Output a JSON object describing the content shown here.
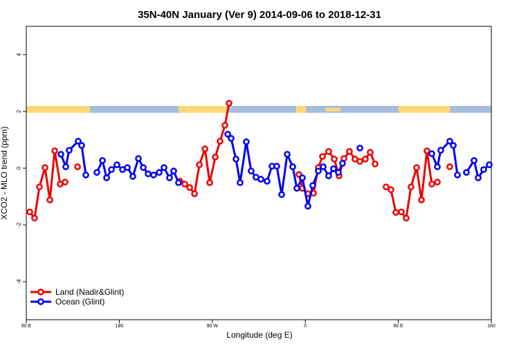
{
  "chart_data": {
    "type": "line",
    "title": "35N-40N January (Ver 9)   2014-09-06 to 2018-12-31",
    "xlabel": "Longitude (deg E)",
    "ylabel": "XCO2 - MLO trend (ppm)",
    "xlim": [
      90,
      540
    ],
    "ylim": [
      -5.34,
      5
    ],
    "xticks": [
      {
        "value": 90,
        "label": "90 E"
      },
      180,
      {
        "value": 270,
        "label": "90 W"
      },
      {
        "value": 360,
        "label": "0"
      },
      {
        "value": 450,
        "label": "90 E"
      },
      {
        "value": 540,
        "label": "180"
      }
    ],
    "yticks": [
      -4,
      -2,
      0,
      2,
      4
    ],
    "legend": "bottom-left",
    "series": [
      {
        "name": "Land (Nadir&Glint)",
        "color": "#ee0000",
        "x": [
          93.3,
          98.0,
          102.7,
          108.1,
          112.8,
          117.5,
          122.8,
          127.5,
          null,
          139.6,
          null,
          238.7,
          243.4,
          248.1,
          252.8,
          257.5,
          262.9,
          267.5,
          272.9,
          277.5,
          282.2,
          286.2,
          null,
          353.8,
          357.2,
          362.5,
          367.9,
          372.6,
          376.6,
          382.6,
          388.0,
          392.7,
          397.4,
          402.7,
          408.1,
          412.8,
          418.1,
          422.8,
          427.5,
          null,
          438.2,
          442.9,
          447.6,
          452.9,
          457.6,
          462.3,
          467.7,
          472.4,
          477.7,
          482.4,
          487.8,
          null,
          499.8
        ],
        "values": [
          -1.54,
          -1.76,
          -0.66,
          0.02,
          -1.12,
          0.61,
          -0.56,
          -0.49,
          null,
          0.05,
          null,
          -0.46,
          -0.56,
          -0.68,
          -0.9,
          0.12,
          0.68,
          -0.51,
          0.39,
          0.95,
          1.51,
          2.29,
          null,
          -0.22,
          -0.71,
          -0.9,
          -0.88,
          0.02,
          0.41,
          0.59,
          0.32,
          -0.27,
          0.34,
          0.59,
          0.32,
          0.24,
          0.32,
          0.56,
          0.15,
          null,
          -0.66,
          -0.76,
          -1.56,
          -1.54,
          -1.76,
          -0.66,
          0.02,
          -1.12,
          0.61,
          -0.56,
          -0.49,
          null,
          0.05
        ]
      },
      {
        "name": "Ocean (Glint)",
        "color": "#0000ee",
        "x": [
          123.5,
          128.2,
          131.5,
          140.2,
          143.6,
          147.6,
          null,
          158.3,
          163.7,
          167.7,
          172.4,
          177.7,
          183.1,
          187.8,
          193.1,
          198.5,
          203.2,
          207.9,
          213.2,
          218.6,
          223.3,
          228.6,
          232.6,
          237.3,
          null,
          284.9,
          288.2,
          292.9,
          296.9,
          302.9,
          307.6,
          312.3,
          317.0,
          323.0,
          327.7,
          332.4,
          337.1,
          342.5,
          347.8,
          351.8,
          357.2,
          362.5,
          367.2,
          372.6,
          377.3,
          382.6,
          387.3,
          392.0,
          396.0,
          null,
          412.8,
          null,
          482.4,
          487.8,
          491.1,
          499.8,
          503.2,
          507.2,
          null,
          515.9,
          523.3,
          527.3,
          532.6,
          538.0
        ],
        "values": [
          0.49,
          0.05,
          0.63,
          0.95,
          0.8,
          -0.24,
          null,
          -0.15,
          0.27,
          -0.34,
          -0.05,
          0.12,
          -0.05,
          0.02,
          -0.29,
          0.34,
          0.02,
          -0.2,
          -0.24,
          -0.15,
          0.02,
          -0.34,
          -0.1,
          -0.51,
          null,
          1.2,
          1.05,
          0.32,
          -0.51,
          0.93,
          -0.1,
          -0.32,
          -0.39,
          -0.46,
          0.07,
          0.07,
          -0.93,
          0.49,
          0.05,
          -0.71,
          -0.34,
          -1.34,
          -0.61,
          -0.1,
          0.05,
          -0.27,
          -0.02,
          -0.15,
          0.17,
          null,
          0.71,
          null,
          0.51,
          0.05,
          0.63,
          0.95,
          0.8,
          -0.24,
          null,
          -0.15,
          0.27,
          -0.34,
          -0.05,
          0.12
        ]
      }
    ]
  }
}
